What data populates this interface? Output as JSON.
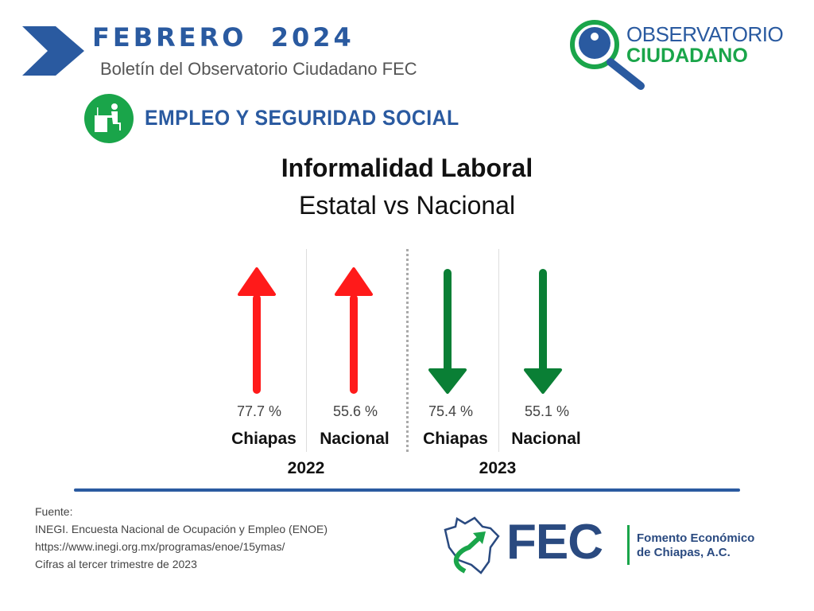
{
  "header": {
    "month_year": "FEBRERO  2024",
    "subtitle": "Boletín del Observatorio Ciudadano FEC",
    "section": "EMPLEO Y SEGURIDAD SOCIAL"
  },
  "logo_observatorio": {
    "line1": "OBSERVATORIO",
    "line2": "CIUDADANO"
  },
  "infographic": {
    "title": "Informalidad Laboral",
    "subtitle": "Estatal vs Nacional",
    "items": [
      {
        "year": "2022",
        "label": "Chiapas",
        "value": "77.7 %",
        "direction": "up",
        "color": "#ff1a1a"
      },
      {
        "year": "2022",
        "label": "Nacional",
        "value": "55.6 %",
        "direction": "up",
        "color": "#ff1a1a"
      },
      {
        "year": "2023",
        "label": "Chiapas",
        "value": "75.4 %",
        "direction": "down",
        "color": "#0a7f35"
      },
      {
        "year": "2023",
        "label": "Nacional",
        "value": "55.1 %",
        "direction": "down",
        "color": "#0a7f35"
      }
    ],
    "years": [
      "2022",
      "2023"
    ]
  },
  "source": {
    "label": "Fuente:",
    "lines": [
      "INEGI. Encuesta Nacional de Ocupación y Empleo (ENOE)",
      "https://www.inegi.org.mx/programas/enoe/15ymas/",
      "Cifras al tercer trimestre de 2023"
    ]
  },
  "logo_fec": {
    "abbr": "FEC",
    "line1": "Fomento Económico",
    "line2": "de Chiapas, A.C."
  },
  "colors": {
    "blue": "#2a5aa0",
    "green": "#1aa54a",
    "red": "#ff1a1a",
    "dark_green": "#0a7f35"
  }
}
